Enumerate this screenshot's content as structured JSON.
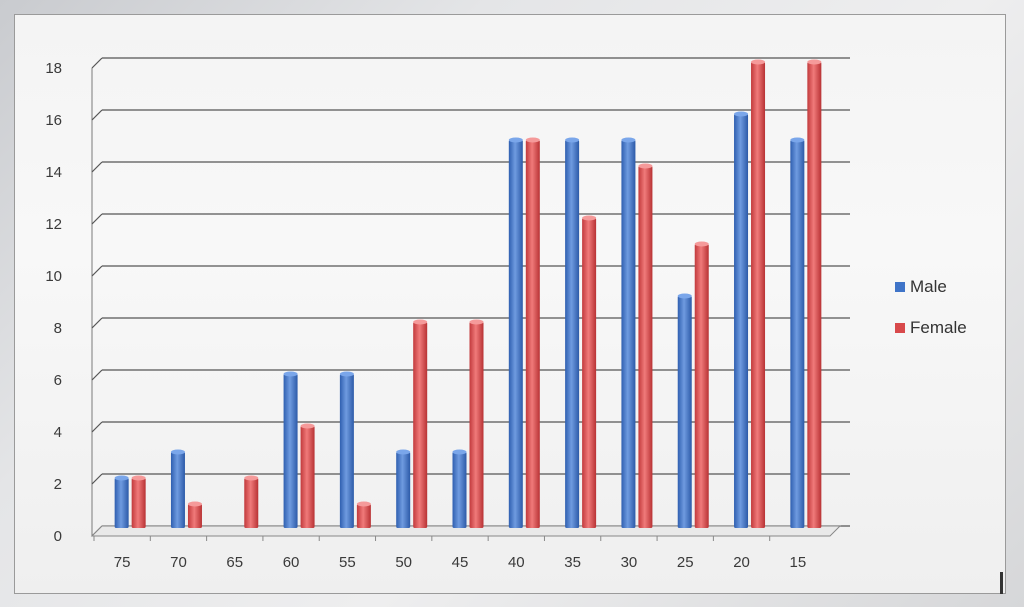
{
  "chart_data": {
    "type": "bar",
    "categories": [
      "75",
      "70",
      "65",
      "60",
      "55",
      "50",
      "45",
      "40",
      "35",
      "30",
      "25",
      "20",
      "15"
    ],
    "series": [
      {
        "name": "Male",
        "values": [
          2,
          3,
          0,
          6,
          6,
          3,
          3,
          15,
          15,
          15,
          9,
          16,
          15
        ],
        "color": "#3f74c8"
      },
      {
        "name": "Female",
        "values": [
          2,
          1,
          2,
          4,
          1,
          8,
          8,
          15,
          12,
          14,
          11,
          18,
          18
        ],
        "color": "#d8494b"
      }
    ],
    "yticks": [
      "0",
      "2",
      "4",
      "6",
      "8",
      "10",
      "12",
      "14",
      "16",
      "18"
    ],
    "ylim": [
      0,
      18
    ],
    "grid": true,
    "legend": "right"
  }
}
